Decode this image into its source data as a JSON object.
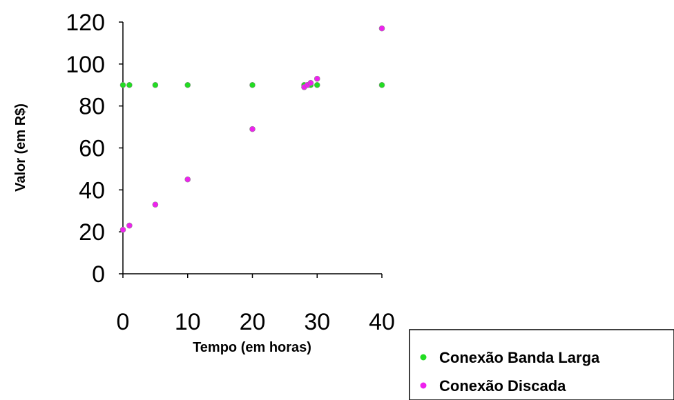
{
  "chart_data": {
    "type": "scatter",
    "title": "",
    "xlabel": "Tempo (em horas)",
    "ylabel": "Valor (em R$)",
    "xlim": [
      0,
      40
    ],
    "ylim": [
      0,
      120
    ],
    "x_ticks": [
      "0",
      "10",
      "20",
      "30",
      "40"
    ],
    "y_ticks": [
      "0",
      "20",
      "40",
      "60",
      "80",
      "100",
      "120"
    ],
    "grid": false,
    "legend_position": "bottom-right",
    "series": [
      {
        "name": "Conexão Banda Larga",
        "color": "#22dd22",
        "x": [
          0,
          1,
          5,
          10,
          20,
          28,
          28.5,
          29,
          30,
          40
        ],
        "y": [
          90,
          90,
          90,
          90,
          90,
          90,
          90,
          90,
          90,
          90
        ]
      },
      {
        "name": "Conexão Discada",
        "color": "#ee22ee",
        "x": [
          0,
          1,
          5,
          10,
          20,
          28,
          28.5,
          29,
          30,
          40
        ],
        "y": [
          21,
          23,
          33,
          45,
          69,
          89,
          90,
          91,
          93,
          117
        ]
      }
    ]
  }
}
